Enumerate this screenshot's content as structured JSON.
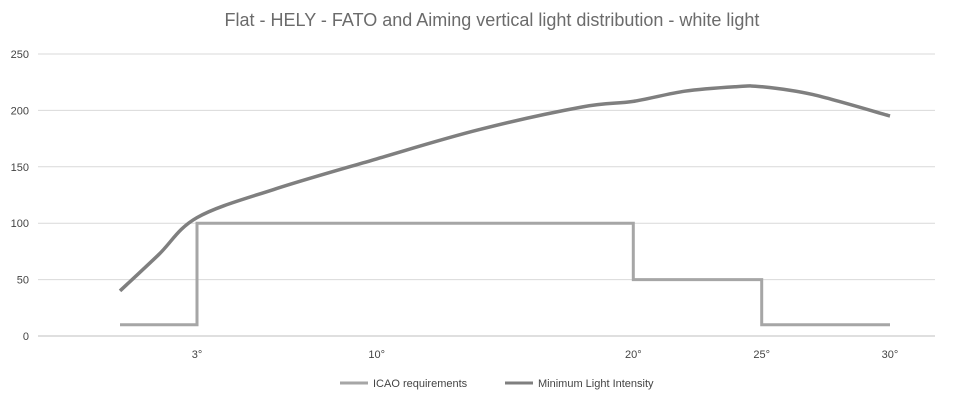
{
  "chart_data": {
    "type": "line",
    "title": "Flat - HELY - FATO and Aiming vertical light distribution - white light",
    "xlabel": "",
    "ylabel": "",
    "ylim": [
      0,
      250
    ],
    "y_ticks": [
      0,
      50,
      100,
      150,
      200,
      250
    ],
    "grid": true,
    "legend_position": "bottom",
    "x_tick_labels": [
      {
        "label": "3°",
        "x": 3
      },
      {
        "label": "10°",
        "x": 10
      },
      {
        "label": "20°",
        "x": 20
      },
      {
        "label": "25°",
        "x": 25
      },
      {
        "label": "30°",
        "x": 30
      }
    ],
    "series": [
      {
        "name": "ICAO requirements",
        "color": "#a6a6a6",
        "points": [
          [
            0,
            10
          ],
          [
            3,
            10
          ],
          [
            3,
            100
          ],
          [
            20,
            100
          ],
          [
            20,
            50
          ],
          [
            25,
            50
          ],
          [
            25,
            10
          ],
          [
            30,
            10
          ]
        ]
      },
      {
        "name": "Minimum Light Intensity",
        "color": "#7f7f7f",
        "points": [
          [
            0,
            40
          ],
          [
            1.5,
            72
          ],
          [
            3,
            105
          ],
          [
            6,
            130
          ],
          [
            10,
            157
          ],
          [
            14,
            183
          ],
          [
            18,
            203
          ],
          [
            20,
            208
          ],
          [
            22,
            217
          ],
          [
            24,
            221
          ],
          [
            25,
            221
          ],
          [
            27,
            214
          ],
          [
            30,
            195
          ]
        ]
      }
    ]
  }
}
